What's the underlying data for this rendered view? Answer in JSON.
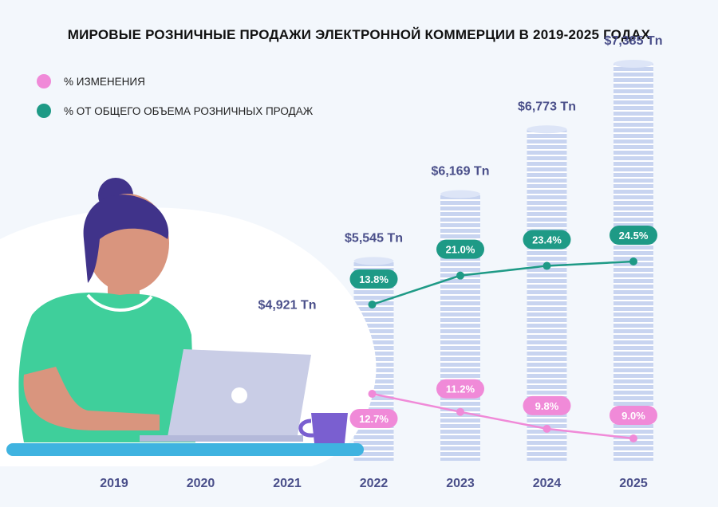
{
  "title": "МИРОВЫЕ РОЗНИЧНЫЕ ПРОДАЖИ ЭЛЕКТРОННОЙ КОММЕРЦИИ В 2019-2025 ГОДАХ",
  "legend": [
    {
      "label": "% ИЗМЕНЕНИЯ",
      "color": "#f08ad8"
    },
    {
      "label": "% ОТ ОБЩЕГО ОБЪЕМА РОЗНИЧНЫХ ПРОДАЖ",
      "color": "#1e9a86"
    }
  ],
  "colors": {
    "coin": "#c8d4f0",
    "coin_stripe": "#ffffff",
    "value_text": "#4a4f8a",
    "year_text": "#4a4f8a",
    "teal": "#1e9a86",
    "pink": "#f08ad8",
    "skin": "#d9957e",
    "shirt": "#3fcf9b",
    "hair": "#40338a",
    "laptop": "#c9cde6",
    "desk": "#3fb3e0",
    "mug": "#7a5fd0"
  },
  "chart_data": {
    "type": "bar",
    "categories": [
      "2019",
      "2020",
      "2021",
      "2022",
      "2023",
      "2024",
      "2025"
    ],
    "series": [
      {
        "values": [
          null,
          null,
          4.921,
          5.545,
          6.169,
          6.773,
          7.385
        ],
        "labels": [
          "",
          "",
          "$4,921 Tn",
          "$5,545 Tn",
          "$6,169 Tn",
          "$6,773 Tn",
          "$7,385 Tn"
        ]
      },
      {
        "name": "% ОТ ОБЩЕГО ОБЪЕМА РОЗНИЧНЫХ ПРОДАЖ",
        "values": [
          null,
          null,
          null,
          13.8,
          21.0,
          23.4,
          24.5
        ],
        "labels": [
          "",
          "",
          "",
          "13.8%",
          "21.0%",
          "23.4%",
          "24.5%"
        ]
      },
      {
        "name": "% ИЗМЕНЕНИЯ",
        "values": [
          null,
          null,
          null,
          12.7,
          11.2,
          9.8,
          9.0
        ],
        "labels": [
          "",
          "",
          "",
          "12.7%",
          "11.2%",
          "9.8%",
          "9.0%"
        ]
      }
    ]
  }
}
